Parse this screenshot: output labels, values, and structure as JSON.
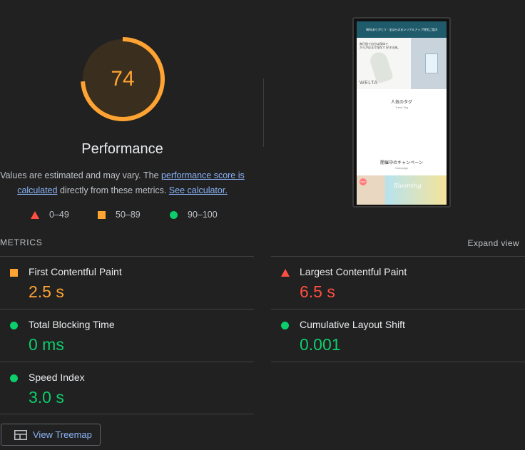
{
  "performance": {
    "score": "74",
    "score_fraction": 0.74,
    "title": "Performance",
    "description": {
      "text_before": "Values are estimated and may vary. The ",
      "link_score": "performance score is calculated",
      "text_middle": " directly from these metrics. ",
      "link_calculator": "See calculator."
    }
  },
  "legend": [
    {
      "icon": "triangle",
      "label": "0–49",
      "color": "#ff4e42"
    },
    {
      "icon": "square",
      "label": "50–89",
      "color": "#ffa333"
    },
    {
      "icon": "circle",
      "label": "90–100",
      "color": "#0cce6b"
    }
  ],
  "screenshot": {
    "banner_text": "Ⅰ周年ありがとう · 全ほらのおシリアルアップ特別ご案内",
    "hero_text_line1": "毎日肌で自分は保体で",
    "hero_text_line2": "からがほまけ保存で 好き出来。",
    "hero_brand": "WELTA",
    "section1_title": "人気のタグ",
    "section1_sub": "Trend Tag",
    "section2_title": "開催中のキャンペーン",
    "section2_sub": "Campaign",
    "promo_badge": "NEW",
    "promo_script": "Blooming"
  },
  "metrics_section": {
    "header": "METRICS",
    "expand_label": "Expand view",
    "items": [
      {
        "name": "First Contentful Paint",
        "value": "2.5 s",
        "rating": "average",
        "icon": "square"
      },
      {
        "name": "Largest Contentful Paint",
        "value": "6.5 s",
        "rating": "fail",
        "icon": "triangle"
      },
      {
        "name": "Total Blocking Time",
        "value": "0 ms",
        "rating": "pass",
        "icon": "circle"
      },
      {
        "name": "Cumulative Layout Shift",
        "value": "0.001",
        "rating": "pass",
        "icon": "circle"
      },
      {
        "name": "Speed Index",
        "value": "3.0 s",
        "rating": "pass",
        "icon": "circle"
      }
    ]
  },
  "treemap_button": {
    "label": "View Treemap",
    "icon": "treemap-icon"
  },
  "colors": {
    "background": "#212121",
    "fail": "#ff4e42",
    "average": "#ffa333",
    "pass": "#0cce6b",
    "link": "#8ab4f8"
  }
}
